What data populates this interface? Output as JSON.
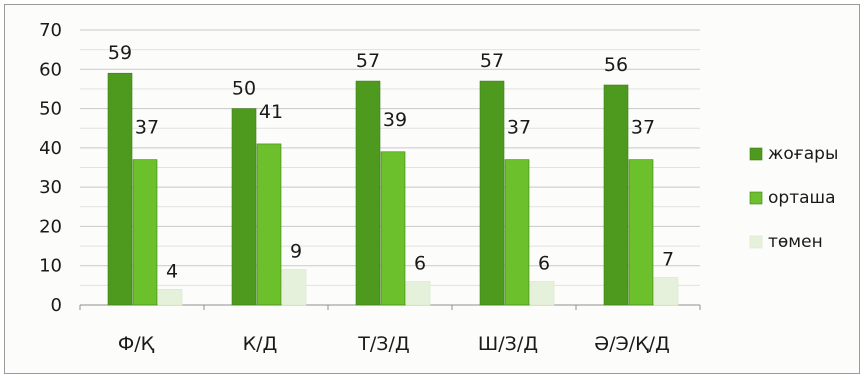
{
  "chart_data": {
    "type": "bar",
    "categories": [
      "Ф/Қ",
      "К/Д",
      "Т/З/Д",
      "Ш/З/Д",
      "Ә/Э/Қ/Д"
    ],
    "series": [
      {
        "name": "жоғары",
        "values": [
          59,
          50,
          57,
          57,
          56
        ],
        "color": "#4e9a1e"
      },
      {
        "name": "орташа",
        "values": [
          37,
          41,
          39,
          37,
          37
        ],
        "color": "#6cc02c"
      },
      {
        "name": "төмен",
        "values": [
          4,
          9,
          6,
          6,
          7
        ],
        "color": "#e6f1dc"
      }
    ],
    "yticks": [
      0,
      10,
      20,
      30,
      40,
      50,
      60,
      70
    ],
    "ylim": [
      0,
      70
    ],
    "grid": true,
    "legend_position": "right",
    "data_labels": true
  }
}
